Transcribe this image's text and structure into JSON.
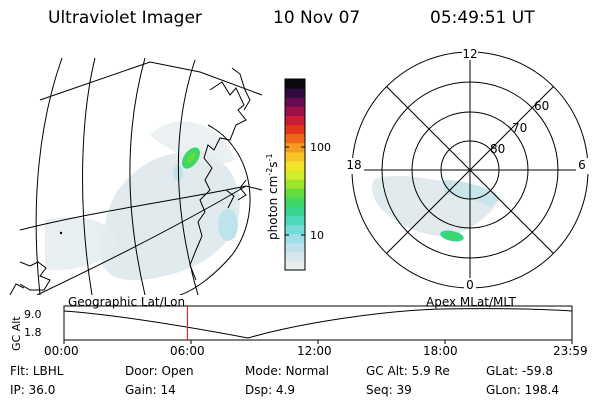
{
  "header": {
    "title": "Ultraviolet Imager",
    "date": "10 Nov 07",
    "time": "05:49:51 UT"
  },
  "left_panel": {
    "label": "Geographic Lat/Lon"
  },
  "colorbar": {
    "label": "photon cm^-2 s^-1",
    "label_main": "photon cm",
    "label_exp1": "-2",
    "label_mid": "s",
    "label_exp2": "-1",
    "ticks": [
      "100",
      "10"
    ],
    "colors": [
      "#e9eded",
      "#d6e6ea",
      "#bfe2ea",
      "#9edfe6",
      "#74dcd7",
      "#4ed8ba",
      "#37d58f",
      "#3ed666",
      "#62dc3e",
      "#9be52b",
      "#d3ec2c",
      "#f3e52a",
      "#f6c527",
      "#f59b21",
      "#ef6a18",
      "#e3351b",
      "#c81d34",
      "#9b1147",
      "#690b4e",
      "#300a40",
      "#0a0a10"
    ]
  },
  "right_panel": {
    "label": "Apex MLat/MLT",
    "mlt_labels": [
      "12",
      "18",
      "6",
      "0"
    ],
    "mlat_labels": [
      "60",
      "70",
      "80"
    ]
  },
  "timeline": {
    "ylabel": "GC Alt",
    "y_ticks": [
      "9.0",
      "1.8"
    ],
    "x_ticks": [
      "00:00",
      "06:00",
      "12:00",
      "18:00",
      "23:59"
    ],
    "current_time_fraction": 0.2429
  },
  "info": {
    "filter_label": "Flt:",
    "filter": "LBHL",
    "door_label": "Door:",
    "door": "Open",
    "mode_label": "Mode:",
    "mode": "Normal",
    "gc_alt_label": "GC Alt:",
    "gc_alt": "5.9 Re",
    "glat_label": "GLat:",
    "glat": "-59.8",
    "ip_label": "IP:",
    "ip": "36.0",
    "gain_label": "Gain:",
    "gain": "14",
    "dsp_label": "Dsp:",
    "dsp": "4.9",
    "seq_label": "Seq:",
    "seq": "39",
    "glon_label": "GLon:",
    "glon": "198.4"
  }
}
